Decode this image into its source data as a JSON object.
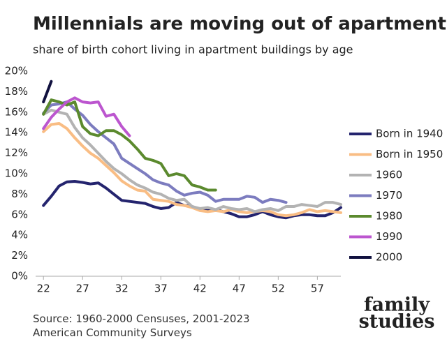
{
  "chart_data": {
    "type": "line",
    "title": "Millennials are moving out of apartments",
    "subtitle": "share of birth cohort living in apartment buildings by age",
    "source": "Source: 1960-2000 Censuses, 2001-2023 American Community Surveys",
    "logo": [
      "family",
      "studies"
    ],
    "x": [
      22,
      23,
      24,
      25,
      26,
      27,
      28,
      29,
      30,
      31,
      32,
      33,
      34,
      35,
      36,
      37,
      38,
      39,
      40,
      41,
      42,
      43,
      44,
      45,
      46,
      47,
      48,
      49,
      50,
      51,
      52,
      53,
      54,
      55,
      56,
      57,
      58,
      59,
      60
    ],
    "xlim": [
      21,
      60
    ],
    "xticks": [
      22,
      27,
      32,
      37,
      42,
      47,
      52,
      57
    ],
    "ylim": [
      0,
      20
    ],
    "yticks": [
      {
        "value": 0,
        "label": "0%"
      },
      {
        "value": 2,
        "label": "2%"
      },
      {
        "value": 4,
        "label": "4%"
      },
      {
        "value": 6,
        "label": "6%"
      },
      {
        "value": 8,
        "label": "8%"
      },
      {
        "value": 10,
        "label": "10%"
      },
      {
        "value": 12,
        "label": "12%"
      },
      {
        "value": 14,
        "label": "14%"
      },
      {
        "value": 16,
        "label": "16%"
      },
      {
        "value": 18,
        "label": "18%"
      },
      {
        "value": 20,
        "label": "20%"
      }
    ],
    "grid": false,
    "legend": "right",
    "series": [
      {
        "name": "Born in 1940",
        "color": "#24246e",
        "values": [
          6.9,
          7.8,
          8.8,
          9.2,
          9.25,
          9.15,
          9.0,
          9.1,
          8.6,
          8.0,
          7.4,
          7.3,
          7.2,
          7.1,
          6.8,
          6.6,
          6.7,
          7.2,
          6.9,
          6.8,
          6.5,
          6.4,
          6.5,
          6.3,
          6.1,
          5.8,
          5.8,
          6.0,
          6.3,
          6.0,
          5.8,
          5.7,
          5.9,
          6.0,
          6.0,
          5.9,
          5.9,
          6.2,
          6.7
        ]
      },
      {
        "name": "Born in 1950",
        "color": "#f9bd84",
        "values": [
          14.1,
          14.8,
          14.9,
          14.4,
          13.5,
          12.7,
          12.0,
          11.5,
          10.8,
          10.1,
          9.3,
          8.8,
          8.4,
          8.3,
          7.5,
          7.4,
          7.3,
          7.0,
          6.9,
          6.7,
          6.4,
          6.3,
          6.4,
          6.3,
          6.5,
          6.3,
          6.2,
          6.3,
          6.4,
          6.3,
          6.0,
          5.9,
          6.0,
          6.2,
          6.5,
          6.3,
          6.4,
          6.3,
          6.2
        ]
      },
      {
        "name": "1960",
        "color": "#b3b3b3",
        "values": [
          15.8,
          16.2,
          16.0,
          15.8,
          14.5,
          13.5,
          12.8,
          12.0,
          11.2,
          10.5,
          10.0,
          9.4,
          8.9,
          8.6,
          8.2,
          8.0,
          7.6,
          7.4,
          7.5,
          6.8,
          6.6,
          6.7,
          6.5,
          6.8,
          6.6,
          6.5,
          6.6,
          6.3,
          6.5,
          6.6,
          6.4,
          6.8,
          6.8,
          7.0,
          6.9,
          6.8,
          7.2,
          7.2,
          7.0
        ]
      },
      {
        "name": "1970",
        "color": "#7c7cbf",
        "values": [
          15.9,
          16.7,
          16.8,
          17.0,
          16.3,
          15.7,
          14.8,
          14.1,
          13.5,
          12.9,
          11.5,
          11.0,
          10.5,
          10.0,
          9.4,
          9.1,
          8.9,
          8.3,
          7.9,
          8.1,
          8.2,
          7.9,
          7.3,
          7.5,
          7.5,
          7.5,
          7.8,
          7.7,
          7.2,
          7.5,
          7.4,
          7.2,
          null,
          null,
          null,
          null,
          null,
          null,
          null
        ]
      },
      {
        "name": "1980",
        "color": "#5b8a2e",
        "values": [
          15.8,
          17.2,
          17.0,
          16.7,
          17.0,
          14.6,
          13.9,
          13.7,
          14.2,
          14.2,
          13.8,
          13.2,
          12.4,
          11.5,
          11.3,
          11.0,
          9.8,
          10.0,
          9.8,
          8.9,
          8.7,
          8.4,
          8.4,
          null,
          null,
          null,
          null,
          null,
          null,
          null,
          null,
          null,
          null,
          null,
          null,
          null,
          null,
          null,
          null
        ]
      },
      {
        "name": "1990",
        "color": "#bc56cf",
        "values": [
          14.4,
          15.5,
          16.3,
          17.0,
          17.4,
          17.0,
          16.9,
          17.0,
          15.6,
          15.8,
          14.6,
          13.7,
          null,
          null,
          null,
          null,
          null,
          null,
          null,
          null,
          null,
          null,
          null,
          null,
          null,
          null,
          null,
          null,
          null,
          null,
          null,
          null,
          null,
          null,
          null,
          null,
          null,
          null,
          null
        ]
      },
      {
        "name": "2000",
        "color": "#11113f",
        "values": [
          17.0,
          19.0,
          null,
          null,
          null,
          null,
          null,
          null,
          null,
          null,
          null,
          null,
          null,
          null,
          null,
          null,
          null,
          null,
          null,
          null,
          null,
          null,
          null,
          null,
          null,
          null,
          null,
          null,
          null,
          null,
          null,
          null,
          null,
          null,
          null,
          null,
          null,
          null,
          null
        ]
      }
    ]
  }
}
